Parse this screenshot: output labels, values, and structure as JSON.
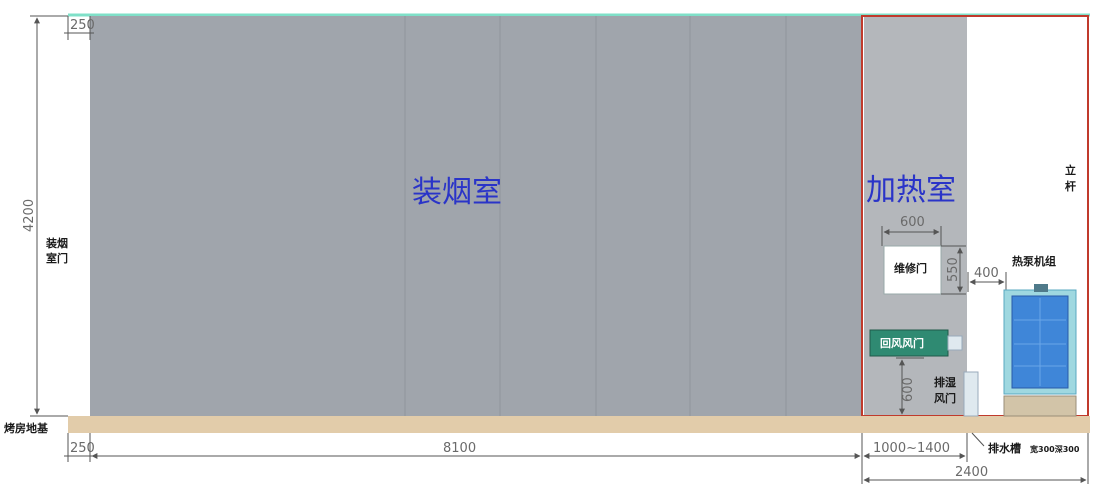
{
  "rooms": {
    "loading_room": "装烟室",
    "heating_room": "加热室",
    "loading_door": [
      "装烟",
      "室门"
    ],
    "pole": [
      "立",
      "杆"
    ]
  },
  "components": {
    "repair_door": "维修门",
    "heat_pump_unit": "热泵机组",
    "return_air_door": "回风风门",
    "exhaust_door": [
      "排湿",
      "风门"
    ],
    "foundation": "烤房地基",
    "drain_label": "排水槽",
    "drain_spec": "宽300深300"
  },
  "dimensions": {
    "height_total": "4200",
    "wall_top": "250",
    "wall_bottom": "250",
    "loading_length": "8100",
    "heating_range": "1000~1400",
    "total_heating": "2400",
    "repair_width": "600",
    "repair_height": "550",
    "pump_gap": "400",
    "door_height": "600"
  },
  "colors": {
    "room_fill": "#a0a5ac",
    "heat_fill": "#b4b7bb",
    "floor": "#e2ccaa",
    "top_line": "#7fe0c8",
    "red_frame": "#c03a2c",
    "label_blue": "#2a34c8",
    "return_door": "#2f8a72",
    "pump": "#3f86d8"
  }
}
